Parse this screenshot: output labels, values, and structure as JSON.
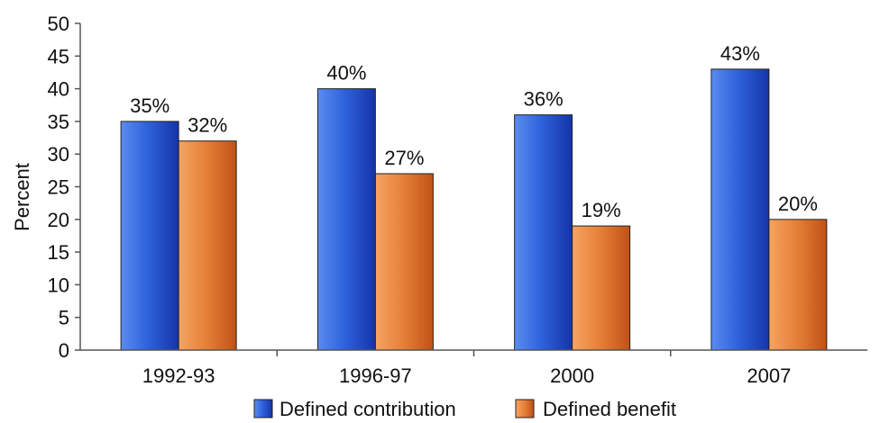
{
  "chart_data": {
    "type": "bar",
    "title": "",
    "xlabel": "",
    "ylabel": "Percent",
    "ylim": [
      0,
      50
    ],
    "yticks": [
      0,
      5,
      10,
      15,
      20,
      25,
      30,
      35,
      40,
      45,
      50
    ],
    "categories": [
      "1992-93",
      "1996-97",
      "2000",
      "2007"
    ],
    "series": [
      {
        "name": "Defined contribution",
        "values": [
          35,
          40,
          36,
          43
        ],
        "labels": [
          "35%",
          "40%",
          "36%",
          "43%"
        ],
        "color": "#2d5fd8"
      },
      {
        "name": "Defined benefit",
        "values": [
          32,
          27,
          19,
          20
        ],
        "labels": [
          "32%",
          "27%",
          "19%",
          "20%"
        ],
        "color": "#e07a2e"
      }
    ],
    "grid": false,
    "legend_position": "bottom"
  }
}
